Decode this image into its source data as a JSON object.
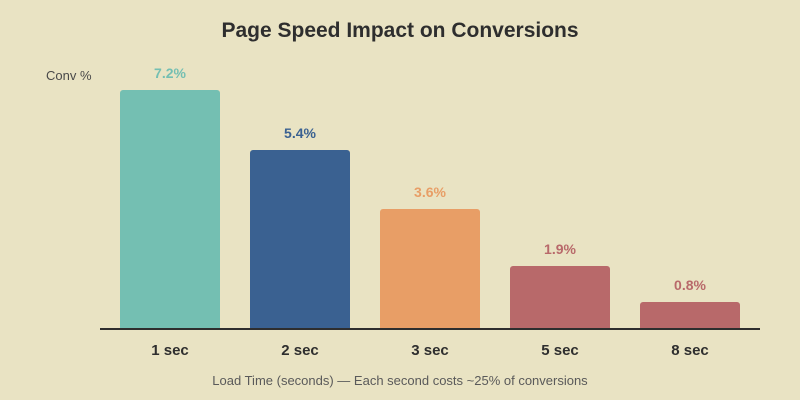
{
  "chart_data": {
    "type": "bar",
    "title": "Page Speed Impact on Conversions",
    "xlabel": "Load Time (seconds) — Each second costs ~25% of conversions",
    "ylabel": "Conv %",
    "categories": [
      "1 sec",
      "2 sec",
      "3 sec",
      "5 sec",
      "8 sec"
    ],
    "values": [
      7.2,
      5.4,
      3.6,
      1.9,
      0.8
    ],
    "value_labels": [
      "7.2%",
      "5.4%",
      "3.6%",
      "1.9%",
      "0.8%"
    ],
    "colors": [
      "#74bfb2",
      "#3a6191",
      "#e89e66",
      "#b8696a",
      "#b8696a"
    ],
    "grid": false,
    "legend": "none"
  }
}
